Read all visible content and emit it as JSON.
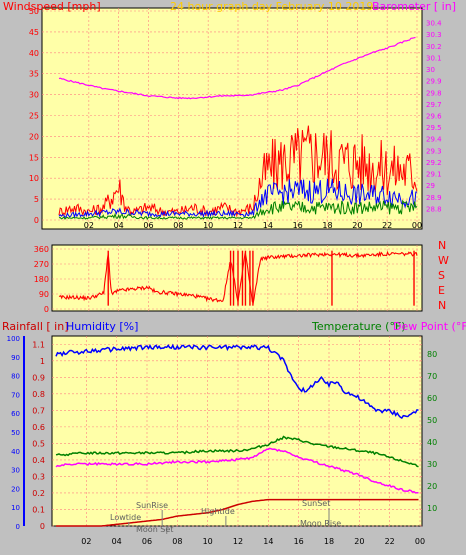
{
  "header": {
    "left_label": "Windspeed [mph]",
    "title": "24 hour graph day   February 10 2019",
    "right_label": "Barometer [ in]"
  },
  "colors": {
    "background": "#ffffa8",
    "frame": "#c0c0c0",
    "red": "#ff0000",
    "blue": "#0000ff",
    "green": "#008000",
    "magenta": "#ff00ff",
    "dark_red": "#cc0000",
    "title_gold": "#ffcc00"
  },
  "direction_letters": [
    "N",
    "W",
    "S",
    "E",
    "N"
  ],
  "bottom_labels": {
    "rainfall": "Rainfall [ in]",
    "humidity": "Humidity [%]",
    "temperature": "Temperature (°F)",
    "dewpoint": "Dew Point (°F)"
  },
  "astro_labels": [
    "Lowtide",
    "SunRise",
    "Moon Set",
    "Hightide",
    "SunSet",
    "Moon Rise"
  ],
  "chart_data": [
    {
      "type": "line",
      "name": "wind-barometer",
      "x_ticks": [
        "02",
        "04",
        "06",
        "08",
        "10",
        "12",
        "14",
        "16",
        "18",
        "20",
        "22",
        "00"
      ],
      "y_left_ticks": [
        "0",
        "5",
        "10",
        "15",
        "20",
        "25",
        "30",
        "35",
        "40",
        "45",
        "50"
      ],
      "ylim_left": [
        0,
        50
      ],
      "y_right_ticks": [
        "28.8",
        "28.9",
        "29",
        "29.1",
        "29.2",
        "29.3",
        "29.4",
        "29.5",
        "29.6",
        "29.7",
        "29.8",
        "29.9",
        "30",
        "30.1",
        "30.2",
        "30.3",
        "30.4"
      ],
      "ylim_right": [
        28.7,
        30.5
      ],
      "grid": true,
      "series": [
        {
          "name": "Barometer",
          "axis": "right",
          "color": "#ff00ff",
          "x": [
            0,
            1,
            2,
            3,
            4,
            5,
            6,
            7,
            8,
            9,
            10,
            11,
            12,
            13,
            14,
            15,
            16,
            17,
            18,
            19,
            20,
            21,
            22,
            23,
            24
          ],
          "y": [
            29.92,
            29.89,
            29.86,
            29.83,
            29.81,
            29.79,
            29.77,
            29.76,
            29.75,
            29.75,
            29.76,
            29.77,
            29.77,
            29.78,
            29.8,
            29.82,
            29.86,
            29.92,
            29.98,
            30.04,
            30.09,
            30.14,
            30.18,
            30.23,
            30.28
          ]
        },
        {
          "name": "Wind gust",
          "axis": "left",
          "color": "#ff0000",
          "x": [
            0,
            1,
            2,
            3,
            3.6,
            4,
            4.5,
            5,
            6,
            7,
            8,
            9,
            10,
            11,
            12,
            13,
            13.5,
            14,
            15,
            16,
            17,
            18,
            19,
            20,
            21,
            22,
            23,
            24
          ],
          "y": [
            2,
            3,
            2,
            3,
            6,
            8,
            3,
            2,
            3,
            2,
            2,
            3,
            2,
            3,
            2,
            3,
            9,
            12,
            14,
            15,
            16,
            15,
            14,
            14,
            13,
            12,
            12,
            11
          ]
        },
        {
          "name": "Wind average",
          "axis": "left",
          "color": "#0000ff",
          "x": [
            0,
            2,
            4,
            6,
            8,
            10,
            12,
            13,
            13.5,
            14,
            16,
            18,
            20,
            22,
            24
          ],
          "y": [
            1,
            1.5,
            2,
            1.5,
            1.5,
            1.5,
            1.5,
            1.5,
            5,
            6,
            7,
            7,
            6,
            6,
            5
          ]
        },
        {
          "name": "Wind low",
          "axis": "left",
          "color": "#008000",
          "x": [
            0,
            2,
            4,
            6,
            8,
            10,
            12,
            13,
            13.5,
            14,
            16,
            18,
            20,
            22,
            24
          ],
          "y": [
            0.5,
            0.5,
            1,
            0.5,
            0.5,
            0.5,
            0.5,
            0.5,
            2,
            3,
            3,
            3,
            3,
            3,
            3
          ]
        }
      ]
    },
    {
      "type": "line",
      "name": "wind-direction",
      "y_ticks": [
        "0",
        "90",
        "180",
        "270",
        "360"
      ],
      "ylim": [
        0,
        360
      ],
      "series": [
        {
          "name": "Wind direction",
          "color": "#ff0000",
          "x": [
            0,
            1,
            2,
            3,
            3.3,
            3.5,
            4,
            5,
            6,
            6.5,
            7,
            8,
            9,
            10,
            11,
            11.5,
            12,
            12.5,
            13,
            13.5,
            14,
            16,
            18,
            20,
            22,
            24
          ],
          "y": [
            70,
            70,
            65,
            95,
            340,
            90,
            110,
            120,
            130,
            100,
            100,
            90,
            80,
            60,
            50,
            300,
            45,
            340,
            20,
            300,
            310,
            320,
            330,
            320,
            330,
            330
          ]
        }
      ]
    },
    {
      "type": "line",
      "name": "rain-humidity-temperature",
      "x_ticks": [
        "02",
        "04",
        "06",
        "08",
        "10",
        "12",
        "14",
        "16",
        "18",
        "20",
        "22",
        "00"
      ],
      "y_rain_ticks": [
        "0",
        "0.1",
        "0.2",
        "0.3",
        "0.4",
        "0.5",
        "0.6",
        "0.7",
        "0.8",
        "0.9",
        "1",
        "1.1"
      ],
      "ylim_rain": [
        0,
        1.15
      ],
      "y_humidity_ticks": [
        "0",
        "10",
        "20",
        "30",
        "40",
        "50",
        "60",
        "70",
        "80",
        "90",
        "100"
      ],
      "ylim_humidity": [
        0,
        100
      ],
      "y_temp_ticks": [
        "10",
        "20",
        "30",
        "40",
        "50",
        "60",
        "70",
        "80"
      ],
      "ylim_temp": [
        5,
        85
      ],
      "series": [
        {
          "name": "Humidity",
          "axis": "humidity",
          "color": "#0000ff",
          "x": [
            0,
            0.5,
            2,
            4,
            6,
            8,
            10,
            12,
            13,
            14,
            15,
            15.5,
            16,
            16.5,
            17,
            17.5,
            18,
            18.5,
            19,
            20,
            20.5,
            21,
            22,
            23,
            23.5,
            24
          ],
          "y": [
            91,
            92,
            93,
            94,
            95,
            95,
            95,
            95,
            95,
            95,
            88,
            80,
            74,
            71,
            76,
            78,
            75,
            77,
            72,
            68,
            65,
            62,
            61,
            58,
            60,
            61
          ]
        },
        {
          "name": "Temperature",
          "axis": "temp",
          "color": "#008000",
          "x": [
            0,
            2,
            4,
            6,
            8,
            10,
            12,
            13,
            14,
            15,
            16,
            17,
            18,
            19,
            20,
            21,
            22,
            23,
            24
          ],
          "y": [
            34,
            35,
            35,
            35,
            35,
            36,
            36,
            37,
            39,
            42,
            41,
            39,
            38,
            37,
            36,
            35,
            33,
            31,
            29
          ]
        },
        {
          "name": "Dew Point",
          "axis": "temp",
          "color": "#ff00ff",
          "x": [
            0,
            1,
            2,
            4,
            6,
            8,
            10,
            12,
            13,
            14,
            15,
            16,
            17,
            18,
            19,
            20,
            21,
            22,
            23,
            24
          ],
          "y": [
            29,
            30,
            30,
            30,
            30,
            31,
            31,
            32,
            33,
            37,
            36,
            33,
            31,
            29,
            27,
            25,
            22,
            20,
            18,
            17
          ]
        },
        {
          "name": "Rainfall",
          "axis": "rain",
          "color": "#cc0000",
          "x": [
            0,
            3,
            5,
            7,
            8,
            10,
            11,
            12,
            13,
            14,
            16,
            20,
            23.9,
            24
          ],
          "y": [
            0.0,
            0.0,
            0.02,
            0.04,
            0.06,
            0.08,
            0.1,
            0.13,
            0.15,
            0.16,
            0.16,
            0.16,
            0.16,
            0.0
          ]
        }
      ]
    }
  ]
}
